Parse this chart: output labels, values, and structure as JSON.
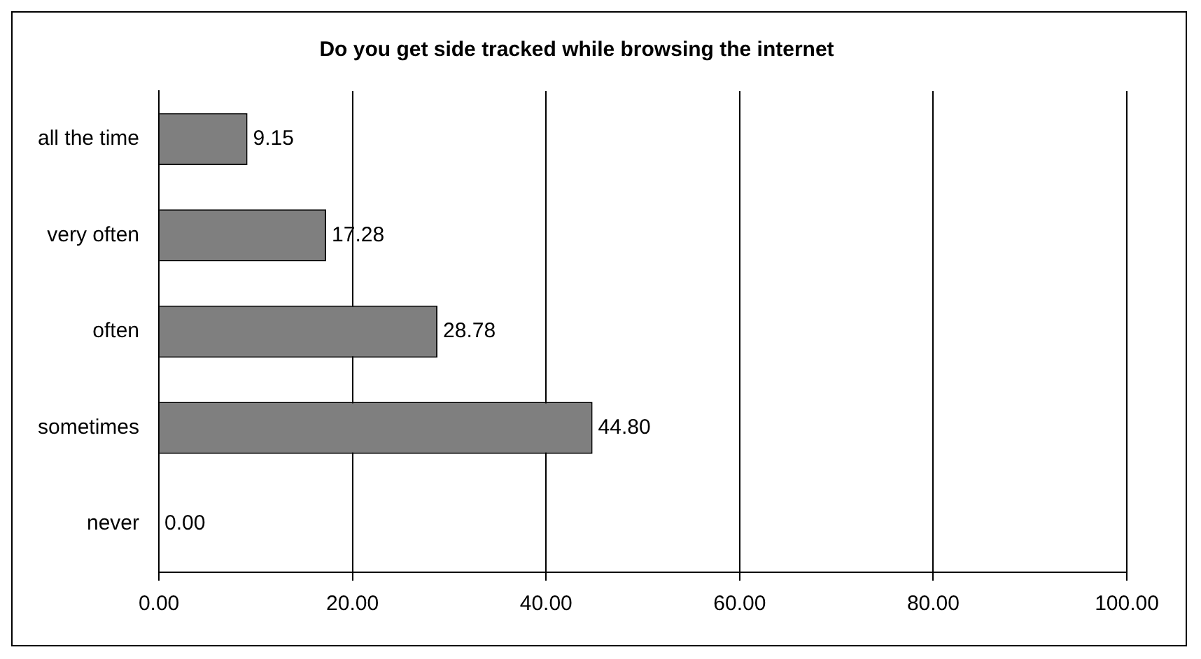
{
  "chart_data": {
    "type": "bar",
    "orientation": "horizontal",
    "title": "Do you get side tracked while browsing the internet",
    "categories": [
      "all the time",
      "very often",
      "often",
      "sometimes",
      "never"
    ],
    "values": [
      9.15,
      17.28,
      28.78,
      44.8,
      0
    ],
    "value_labels": [
      "9.15",
      "17.28",
      "28.78",
      "44.80",
      "0.00"
    ],
    "color": "#7f7f7f",
    "xlim": [
      0,
      100
    ],
    "xticks": [
      {
        "value": 0,
        "label": "0.00"
      },
      {
        "value": 20,
        "label": "20.00"
      },
      {
        "value": 40,
        "label": "40.00"
      },
      {
        "value": 60,
        "label": "60.00"
      },
      {
        "value": 80,
        "label": "80.00"
      },
      {
        "value": 100,
        "label": "100.00"
      }
    ],
    "grid": "x",
    "legend": false
  }
}
